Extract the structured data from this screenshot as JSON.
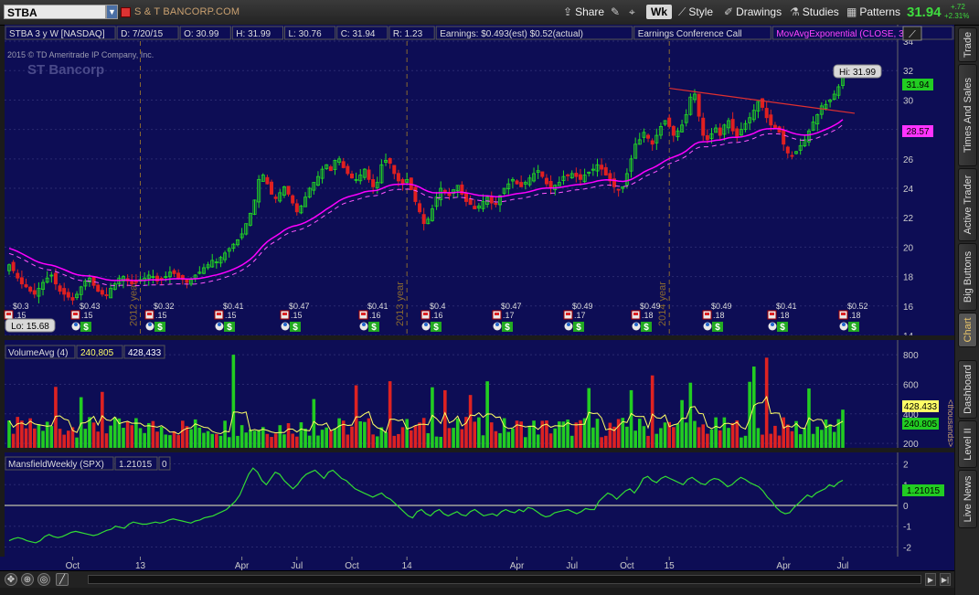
{
  "toolbar": {
    "symbol": "STBA",
    "company": "S & T BANCORP.COM",
    "share_label": "Share",
    "aggregation": "Wk",
    "style_label": "Style",
    "drawings_label": "Drawings",
    "studies_label": "Studies",
    "patterns_label": "Patterns",
    "last_price": "31.94",
    "change_abs": "+.72",
    "change_pct": "+2.31%"
  },
  "sidebar": {
    "tabs": [
      "Trade",
      "Times And Sales",
      "Active Trader",
      "Big Buttons",
      "Chart",
      "Dashboard",
      "Level II",
      "Live News"
    ],
    "active_tab": "Chart"
  },
  "price_panel": {
    "header_items": [
      "STBA 3 y W [NASDAQ]",
      "D: 7/20/15",
      "O: 30.99",
      "H: 31.99",
      "L: 30.76",
      "C: 31.94",
      "R: 1.23",
      "Earnings: $0.493(est) $0.52(actual)",
      "Earnings Conference Call",
      "MovAvgExponential (CLOSE, 30, 0)",
      "28.57",
      "..."
    ],
    "copyright": "2015 © TD Ameritrade IP Company, Inc.",
    "watermark": "ST Bancorp",
    "hi_label": "Hi: 31.99",
    "lo_label": "Lo: 15.68",
    "last_price_tag": "31.94",
    "ema_tag": "28.57",
    "year_markers": [
      "2012 year",
      "2013 year",
      "2014 year"
    ],
    "earnings": [
      "$0.3",
      "$0.43",
      "$0.32",
      "$0.41",
      "$0.47",
      "$0.41",
      "$0.4",
      "$0.47",
      "$0.49",
      "$0.49",
      "$0.49",
      "$0.41",
      "$0.52"
    ],
    "dividends": [
      ".15",
      ".15",
      ".15",
      ".15",
      ".15",
      ".16",
      ".16",
      ".17",
      ".17",
      ".18",
      ".18",
      ".18",
      ".18"
    ],
    "colors": {
      "ema": "#ff00ff",
      "trendline": "#e03030",
      "up": "#22dd22",
      "down": "#e02020",
      "background": "#0d0d55"
    }
  },
  "volume_panel": {
    "label": "VolumeAvg (4)",
    "avg_value": "240,805",
    "volume_value": "428,433",
    "unit_label": "<thousands>",
    "tag_volume": "428.433",
    "tag_avg": "240.805"
  },
  "mansfield_panel": {
    "label": "MansfieldWeekly (SPX)",
    "value": "1.21015",
    "extra": "0",
    "tag": "1.21015"
  },
  "x_axis": {
    "labels": [
      "Oct",
      "13",
      "Apr",
      "Jul",
      "Oct",
      "14",
      "Apr",
      "Jul",
      "Oct",
      "15",
      "Apr",
      "Jul"
    ]
  },
  "chart_data": [
    {
      "type": "candlestick",
      "title": "STBA 3 y W [NASDAQ]",
      "y_ticks": [
        14,
        16,
        18,
        20,
        22,
        24,
        26,
        28,
        30,
        32,
        34
      ],
      "ylim": [
        14,
        34.5
      ],
      "close": [
        18.8,
        18.4,
        17.9,
        17.5,
        17.3,
        17.0,
        16.8,
        17.2,
        17.6,
        17.9,
        18.1,
        17.5,
        17.0,
        16.8,
        16.6,
        16.4,
        16.8,
        17.3,
        17.7,
        17.9,
        17.4,
        17.0,
        16.8,
        16.7,
        17.2,
        17.5,
        17.9,
        18.0,
        17.7,
        17.5,
        17.6,
        17.8,
        17.9,
        18.1,
        18.0,
        17.7,
        17.8,
        18.0,
        18.3,
        18.2,
        17.9,
        17.8,
        17.6,
        17.8,
        18.1,
        18.3,
        18.6,
        18.8,
        19.1,
        19.0,
        19.3,
        19.6,
        19.9,
        20.2,
        20.5,
        20.9,
        21.6,
        22.3,
        23.2,
        24.6,
        24.9,
        24.3,
        23.6,
        23.3,
        23.7,
        24.1,
        23.6,
        23.0,
        22.4,
        22.8,
        23.4,
        24.0,
        24.4,
        24.8,
        25.3,
        25.6,
        25.2,
        25.9,
        26.0,
        25.4,
        25.0,
        24.7,
        24.6,
        24.9,
        25.3,
        24.6,
        24.1,
        24.4,
        25.6,
        25.9,
        25.7,
        25.0,
        24.5,
        24.3,
        24.6,
        23.9,
        23.1,
        22.4,
        21.6,
        21.9,
        22.6,
        23.4,
        24.0,
        23.7,
        23.5,
        23.9,
        24.2,
        23.6,
        23.1,
        22.9,
        22.6,
        22.8,
        23.1,
        23.4,
        23.0,
        22.9,
        23.5,
        24.0,
        24.3,
        24.6,
        24.3,
        24.1,
        24.4,
        24.7,
        25.0,
        25.2,
        24.8,
        24.3,
        24.0,
        24.2,
        24.4,
        24.8,
        24.9,
        25.0,
        24.8,
        24.6,
        24.9,
        25.1,
        25.3,
        25.6,
        25.3,
        24.9,
        24.5,
        24.1,
        23.9,
        24.1,
        25.0,
        26.0,
        27.0,
        27.3,
        27.8,
        27.4,
        27.0,
        27.6,
        28.2,
        28.6,
        28.2,
        27.6,
        27.9,
        28.3,
        29.0,
        30.2,
        30.4,
        28.9,
        27.6,
        27.3,
        27.7,
        28.1,
        27.6,
        28.3,
        28.6,
        27.9,
        27.5,
        28.0,
        28.4,
        28.8,
        29.3,
        29.9,
        29.5,
        28.8,
        28.3,
        28.1,
        27.8,
        27.0,
        26.4,
        26.2,
        26.5,
        26.9,
        27.3,
        27.9,
        28.5,
        29.0,
        29.6,
        29.7,
        30.0,
        30.4,
        30.9,
        31.94
      ],
      "ema_30": "drawn",
      "trendline": {
        "from": {
          "x_year": "2014 year",
          "price": 30.8
        },
        "to": {
          "x": "Jul 2015",
          "price": 29.1
        }
      },
      "hi": 31.99,
      "lo": 15.68
    },
    {
      "type": "bar",
      "title": "VolumeAvg (4)",
      "y_ticks": [
        200,
        400,
        600,
        800
      ],
      "ylim": [
        170,
        850
      ],
      "avg_line": "drawn",
      "last_volume": 428.433,
      "last_avg": 240.805
    },
    {
      "type": "line",
      "title": "MansfieldWeekly (SPX)",
      "y_ticks": [
        -2,
        -1,
        0,
        1,
        2
      ],
      "ylim": [
        -2.2,
        2.2
      ],
      "zero_line": true,
      "last_value": 1.21015,
      "values": [
        -1.7,
        -1.6,
        -1.55,
        -1.6,
        -1.7,
        -1.75,
        -1.8,
        -1.7,
        -1.5,
        -1.4,
        -1.5,
        -1.55,
        -1.5,
        -1.4,
        -1.3,
        -1.25,
        -1.3,
        -1.35,
        -1.4,
        -1.45,
        -1.4,
        -1.3,
        -1.2,
        -1.15,
        -1.0,
        -1.05,
        -1.1,
        -0.9,
        -0.8,
        -0.85,
        -0.9,
        -0.9,
        -0.85,
        -0.8,
        -0.85,
        -0.8,
        -0.7,
        -0.65,
        -0.7,
        -0.75,
        -0.8,
        -0.85,
        -0.75,
        -0.7,
        -0.6,
        -0.55,
        -0.5,
        -0.4,
        -0.3,
        -0.2,
        0.0,
        0.2,
        0.5,
        1.0,
        1.5,
        1.8,
        1.6,
        1.2,
        1.0,
        1.3,
        1.6,
        1.5,
        1.2,
        1.0,
        0.8,
        1.0,
        1.3,
        1.5,
        1.6,
        1.7,
        1.5,
        1.3,
        1.6,
        1.7,
        1.5,
        1.3,
        1.2,
        1.0,
        0.8,
        0.7,
        0.6,
        0.5,
        0.4,
        0.5,
        0.6,
        0.4,
        0.3,
        0.1,
        -0.1,
        -0.3,
        -0.5,
        -0.6,
        -0.3,
        -0.2,
        -0.4,
        -0.5,
        -0.3,
        -0.2,
        -0.4,
        -0.5,
        -0.4,
        -0.3,
        -0.45,
        -0.5,
        -0.3,
        -0.2,
        -0.35,
        -0.5,
        -0.45,
        -0.4,
        -0.5,
        -0.3,
        -0.2,
        -0.3,
        -0.35,
        -0.2,
        -0.3,
        -0.1,
        -0.15,
        -0.3,
        -0.45,
        -0.55,
        -0.5,
        -0.35,
        -0.3,
        -0.25,
        -0.2,
        -0.3,
        -0.4,
        -0.3,
        -0.15,
        -0.2,
        -0.2,
        0.2,
        0.4,
        0.6,
        0.5,
        0.3,
        0.5,
        0.7,
        0.8,
        0.6,
        0.9,
        1.3,
        1.4,
        1.2,
        1.1,
        1.3,
        1.4,
        1.3,
        1.2,
        1.1,
        1.0,
        1.25,
        1.35,
        1.2,
        1.05,
        1.0,
        1.2,
        1.3,
        1.25,
        1.1,
        0.9,
        1.0,
        1.2,
        1.35,
        1.25,
        1.1,
        1.0,
        0.9,
        0.7,
        0.4,
        0.2,
        -0.1,
        -0.3,
        -0.4,
        -0.35,
        -0.1,
        0.1,
        0.3,
        0.5,
        0.4,
        0.6,
        0.7,
        0.8,
        1.0,
        0.9,
        1.1,
        1.21015
      ]
    }
  ]
}
